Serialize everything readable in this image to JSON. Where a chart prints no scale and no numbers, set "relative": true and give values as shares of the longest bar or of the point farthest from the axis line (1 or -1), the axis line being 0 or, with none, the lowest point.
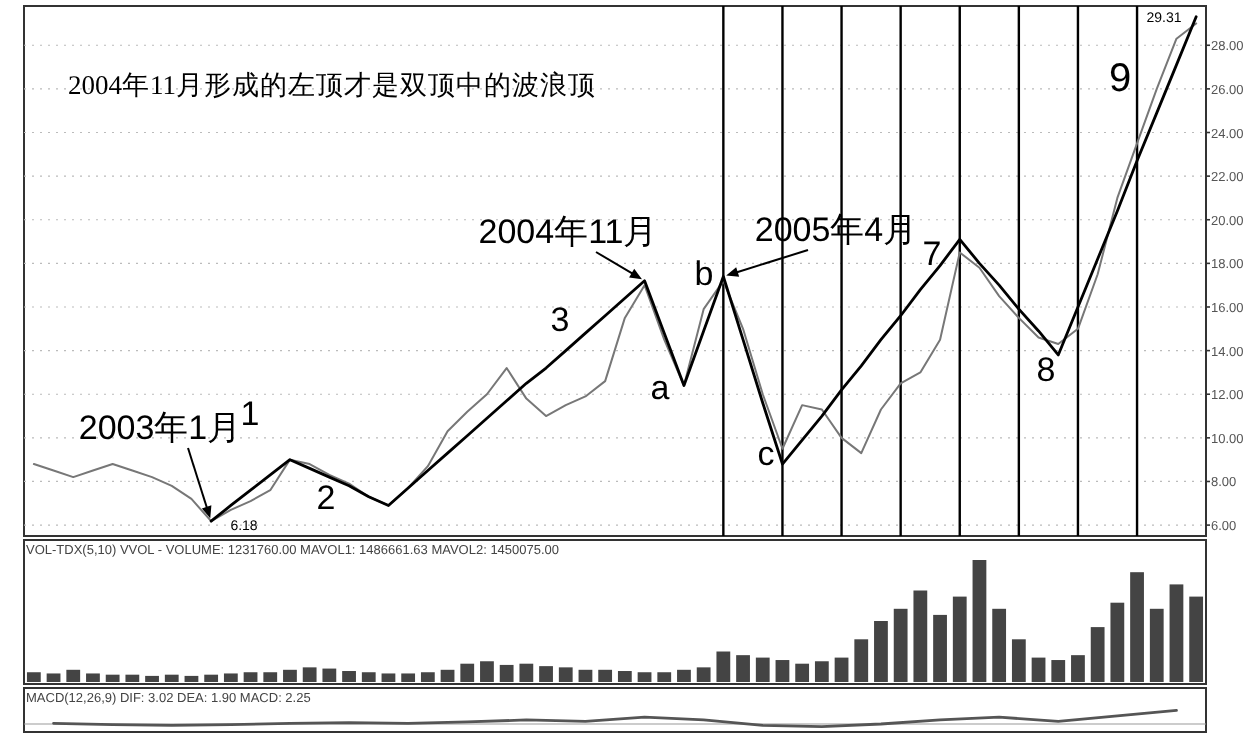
{
  "chart_data": [
    {
      "type": "line",
      "title": "2004年11月形成的左顶才是双顶中的波浪顶",
      "ylim": [
        5.5,
        29.8
      ],
      "yticks": [
        {
          "value": 6,
          "label": "6.00"
        },
        {
          "value": 8,
          "label": "8.00"
        },
        {
          "value": 10,
          "label": "10.00"
        },
        {
          "value": 12,
          "label": "12.00"
        },
        {
          "value": 14,
          "label": "14.00"
        },
        {
          "value": 16,
          "label": "16.00"
        },
        {
          "value": 18,
          "label": "18.00"
        },
        {
          "value": 20,
          "label": "20.00"
        },
        {
          "value": 22,
          "label": "22.00"
        },
        {
          "value": 24,
          "label": "24.00"
        },
        {
          "value": 26,
          "label": "26.00"
        },
        {
          "value": 28,
          "label": "28.00"
        }
      ],
      "grid": true,
      "marker": "none",
      "line_style": "solid",
      "categories": [
        null,
        null,
        null,
        null,
        null,
        null,
        null,
        null,
        null,
        null,
        null,
        null,
        null,
        null,
        null,
        null,
        null,
        null,
        null,
        null,
        null,
        null,
        null,
        null,
        null,
        null,
        null,
        null,
        null,
        null,
        null,
        null,
        null,
        null,
        null,
        null,
        null,
        null,
        null,
        null,
        null,
        null,
        null,
        null,
        null,
        null,
        null,
        null,
        null,
        null,
        null,
        null,
        null,
        null,
        null,
        null,
        null,
        null,
        null,
        null
      ],
      "series": [
        {
          "color": "#777777",
          "values": [
            8.8,
            8.5,
            8.2,
            8.5,
            8.8,
            8.5,
            8.2,
            7.8,
            7.2,
            6.18,
            6.7,
            7.1,
            7.6,
            9.0,
            8.8,
            8.3,
            7.9,
            7.3,
            6.9,
            7.7,
            8.7,
            10.3,
            11.2,
            12.0,
            13.2,
            11.8,
            11.0,
            11.5,
            11.9,
            12.6,
            15.5,
            17.0,
            14.5,
            12.4,
            15.9,
            17.2,
            15.0,
            12.0,
            9.5,
            11.5,
            11.3,
            10.0,
            9.3,
            11.3,
            12.5,
            13.0,
            14.5,
            18.5,
            17.8,
            16.5,
            15.5,
            14.6,
            14.3,
            15.0,
            17.5,
            21.0,
            23.5,
            26.0,
            28.3,
            29.0
          ]
        },
        {
          "color": "#000000",
          "values": [
            null,
            null,
            null,
            null,
            null,
            null,
            null,
            null,
            null,
            6.18,
            6.9,
            7.6,
            8.3,
            9.0,
            8.6,
            8.2,
            7.8,
            7.3,
            6.9,
            7.7,
            8.5,
            9.3,
            10.1,
            10.9,
            11.7,
            12.5,
            13.2,
            14.0,
            14.8,
            15.6,
            16.4,
            17.2,
            14.8,
            12.4,
            14.9,
            17.4,
            14.5,
            11.6,
            8.8,
            9.9,
            11.0,
            12.2,
            13.3,
            14.5,
            15.6,
            16.8,
            17.9,
            19.1,
            18.0,
            17.0,
            15.9,
            14.9,
            13.8,
            16.0,
            18.2,
            20.4,
            22.7,
            24.9,
            27.1,
            29.31
          ]
        }
      ],
      "annotations": [
        "2003年1月",
        "6.18",
        "1",
        "2",
        "3",
        "2004年11月",
        "a",
        "b",
        "2005年4月",
        "c",
        "7",
        "8",
        "9",
        "29.31"
      ]
    },
    {
      "type": "bar",
      "title": "VOL-TDX(5,10) VVOL - VOLUME: 1231760.00 MAVOL1: 1486661.63 MAVOL2: 1450075.00",
      "relative": true,
      "color": "#444444",
      "categories": [
        null,
        null,
        null,
        null,
        null,
        null,
        null,
        null,
        null,
        null,
        null,
        null,
        null,
        null,
        null,
        null,
        null,
        null,
        null,
        null,
        null,
        null,
        null,
        null,
        null,
        null,
        null,
        null,
        null,
        null,
        null,
        null,
        null,
        null,
        null,
        null,
        null,
        null,
        null,
        null,
        null,
        null,
        null,
        null,
        null,
        null,
        null,
        null,
        null,
        null,
        null,
        null,
        null,
        null,
        null,
        null,
        null,
        null,
        null,
        null
      ],
      "values": [
        0.08,
        0.07,
        0.1,
        0.07,
        0.06,
        0.06,
        0.05,
        0.06,
        0.05,
        0.06,
        0.07,
        0.08,
        0.08,
        0.1,
        0.12,
        0.11,
        0.09,
        0.08,
        0.07,
        0.07,
        0.08,
        0.1,
        0.15,
        0.17,
        0.14,
        0.15,
        0.13,
        0.12,
        0.1,
        0.1,
        0.09,
        0.08,
        0.08,
        0.1,
        0.12,
        0.25,
        0.22,
        0.2,
        0.18,
        0.15,
        0.17,
        0.2,
        0.35,
        0.5,
        0.6,
        0.75,
        0.55,
        0.7,
        1,
        0.6,
        0.35,
        0.2,
        0.18,
        0.22,
        0.45,
        0.65,
        0.9,
        0.6,
        0.8,
        0.7
      ]
    },
    {
      "type": "line",
      "title": "MACD(12,26,9) DIF: 3.02 DEA: 1.90 MACD: 2.25",
      "relative": true,
      "categories": [
        null,
        null,
        null,
        null,
        null,
        null,
        null,
        null,
        null,
        null,
        null,
        null,
        null,
        null,
        null,
        null,
        null,
        null,
        null,
        null
      ],
      "series": [
        {
          "color": "#555555",
          "values": [
            0.05,
            -0.05,
            -0.1,
            -0.05,
            0.05,
            0.1,
            0.05,
            0.15,
            0.3,
            0.2,
            0.5,
            0.3,
            -0.1,
            -0.2,
            0.0,
            0.3,
            0.5,
            0.2,
            0.6,
            1
          ]
        }
      ]
    }
  ]
}
